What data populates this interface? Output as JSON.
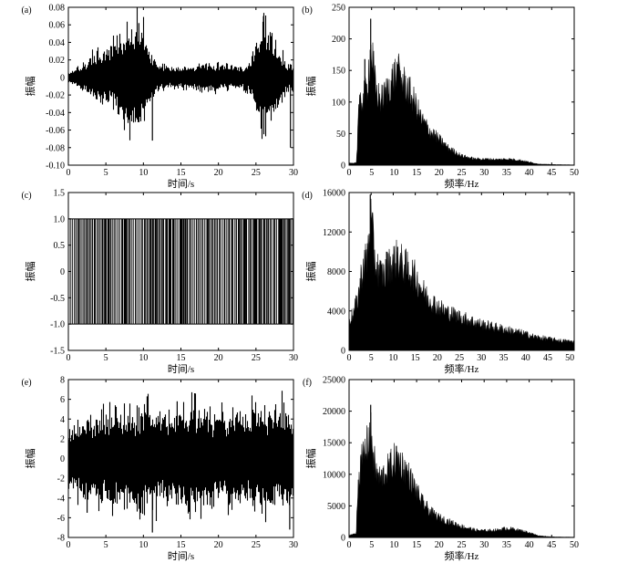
{
  "chart_data": [
    {
      "panel": "(a)",
      "type": "line",
      "signal": "noisy-waveform",
      "xlabel": "时间/s",
      "ylabel": "振幅",
      "xlim": [
        0,
        30
      ],
      "ylim": [
        -0.1,
        0.08
      ],
      "xticks": [
        0,
        5,
        10,
        15,
        20,
        25,
        30
      ],
      "yticks": [
        0.08,
        0.06,
        0.04,
        0.02,
        0,
        -0.02,
        -0.04,
        -0.06,
        -0.08,
        -0.1
      ],
      "yticklabels": [
        "0.08",
        "0.06",
        "0.04",
        "0.02",
        "0",
        "-0.02",
        "-0.04",
        "-0.06",
        "-0.08",
        "-0.10"
      ],
      "envelope_x": [
        0,
        2,
        4,
        6,
        8,
        9,
        10,
        11,
        12,
        14,
        16,
        18,
        20,
        22,
        24,
        25,
        25.5,
        26,
        27,
        28,
        29,
        30
      ],
      "envelope_amp": [
        0.004,
        0.012,
        0.022,
        0.028,
        0.045,
        0.05,
        0.04,
        0.02,
        0.012,
        0.009,
        0.01,
        0.013,
        0.012,
        0.01,
        0.012,
        0.03,
        0.045,
        0.055,
        0.045,
        0.025,
        0.015,
        0.01
      ],
      "spikes": [
        {
          "x": 11.2,
          "y": -0.072
        },
        {
          "x": 26.0,
          "y": 0.07
        },
        {
          "x": 29.6,
          "y": -0.08
        },
        {
          "x": 9.4,
          "y": 0.062
        }
      ]
    },
    {
      "panel": "(b)",
      "type": "bar",
      "signal": "spectrum",
      "xlabel": "频率/Hz",
      "ylabel": "振幅",
      "xlim": [
        0,
        50
      ],
      "ylim": [
        0,
        250
      ],
      "xticks": [
        0,
        5,
        10,
        15,
        20,
        25,
        30,
        35,
        40,
        45,
        50
      ],
      "yticks": [
        0,
        50,
        100,
        150,
        200,
        250
      ],
      "yticklabels": [
        "0",
        "50",
        "100",
        "150",
        "200",
        "250"
      ],
      "envelope_x": [
        0,
        1.6,
        1.8,
        2,
        3,
        4,
        4.5,
        5,
        5.5,
        6,
        7,
        8,
        9,
        10,
        11,
        12,
        13,
        14,
        15,
        16,
        18,
        20,
        22,
        25,
        28,
        30,
        33,
        35,
        38,
        40,
        42,
        45,
        50
      ],
      "envelope_y": [
        3,
        4,
        25,
        85,
        110,
        125,
        170,
        185,
        150,
        120,
        105,
        115,
        130,
        145,
        148,
        135,
        125,
        110,
        95,
        75,
        55,
        42,
        28,
        15,
        10,
        10,
        9,
        10,
        8,
        5,
        2,
        1,
        0.5
      ],
      "spikes": [
        {
          "x": 4.8,
          "y": 232
        },
        {
          "x": 10.8,
          "y": 160
        },
        {
          "x": 3.5,
          "y": 168
        }
      ]
    },
    {
      "panel": "(c)",
      "type": "line",
      "signal": "binary-switching",
      "xlabel": "时间/s",
      "ylabel": "振幅",
      "xlim": [
        0,
        30
      ],
      "ylim": [
        -1.5,
        1.5
      ],
      "xticks": [
        0,
        5,
        10,
        15,
        20,
        25,
        30
      ],
      "yticks": [
        1.5,
        1.0,
        0.5,
        0,
        -0.5,
        -1.0,
        -1.5
      ],
      "yticklabels": [
        "1.5",
        "1.0",
        "0.5",
        "0",
        "-0.5",
        "-1.0",
        "-1.5"
      ],
      "levels": [
        -1,
        1
      ]
    },
    {
      "panel": "(d)",
      "type": "bar",
      "signal": "spectrum",
      "xlabel": "频率/Hz",
      "ylabel": "振幅",
      "xlim": [
        0,
        51
      ],
      "ylim": [
        0,
        16000
      ],
      "xticks": [
        0,
        5,
        10,
        15,
        20,
        25,
        30,
        35,
        40,
        45,
        50
      ],
      "yticks": [
        0,
        4000,
        8000,
        12000,
        16000
      ],
      "yticklabels": [
        "0",
        "4000",
        "8000",
        "12000",
        "16000"
      ],
      "envelope_x": [
        0,
        1,
        2,
        3,
        4,
        4.5,
        5,
        5.5,
        6,
        7,
        8,
        9,
        10,
        11,
        12,
        13,
        14,
        15,
        16,
        17,
        18,
        20,
        22,
        25,
        28,
        30,
        33,
        35,
        38,
        40,
        42,
        45,
        48,
        51
      ],
      "envelope_y": [
        3200,
        3800,
        5500,
        8500,
        9500,
        11500,
        13500,
        11000,
        9000,
        8000,
        7800,
        8800,
        9200,
        9500,
        9000,
        8600,
        8200,
        7600,
        6800,
        6000,
        5400,
        4600,
        4000,
        3500,
        3000,
        2700,
        2400,
        2200,
        1900,
        1700,
        1400,
        1200,
        1000,
        900
      ],
      "spikes": [
        {
          "x": 4.8,
          "y": 15800
        },
        {
          "x": 11,
          "y": 10500
        },
        {
          "x": 8.5,
          "y": 10000
        }
      ]
    },
    {
      "panel": "(e)",
      "type": "line",
      "signal": "noisy-waveform",
      "xlabel": "时间/s",
      "ylabel": "振幅",
      "xlim": [
        0,
        30
      ],
      "ylim": [
        -8,
        8
      ],
      "xticks": [
        0,
        5,
        10,
        15,
        20,
        25,
        30
      ],
      "yticks": [
        8,
        6,
        4,
        2,
        0,
        -2,
        -4,
        -6,
        -8
      ],
      "yticklabels": [
        "8",
        "6",
        "4",
        "2",
        "0",
        "-2",
        "-4",
        "-6",
        "-8"
      ],
      "envelope_x": [
        0,
        2,
        4,
        6,
        8,
        10,
        12,
        14,
        16,
        18,
        20,
        22,
        24,
        26,
        28,
        30
      ],
      "envelope_amp": [
        2.5,
        3.2,
        3.5,
        3.8,
        4,
        4.2,
        3.5,
        3.6,
        4,
        4,
        3.5,
        3.8,
        3.6,
        4,
        3.8,
        3.5
      ],
      "spikes": [
        {
          "x": 11.2,
          "y": -7.5
        },
        {
          "x": 10.5,
          "y": 6.3
        },
        {
          "x": 29.5,
          "y": -7.2
        },
        {
          "x": 14.5,
          "y": 5.8
        },
        {
          "x": 2.5,
          "y": -5.5
        }
      ]
    },
    {
      "panel": "(f)",
      "type": "bar",
      "signal": "spectrum",
      "xlabel": "频率/Hz",
      "ylabel": "振幅",
      "xlim": [
        0,
        50
      ],
      "ylim": [
        0,
        25000
      ],
      "xticks": [
        0,
        5,
        10,
        15,
        20,
        25,
        30,
        35,
        40,
        45,
        50
      ],
      "yticks": [
        0,
        5000,
        10000,
        15000,
        20000,
        25000
      ],
      "yticklabels": [
        "0",
        "5000",
        "10000",
        "15000",
        "20000",
        "25000"
      ],
      "envelope_x": [
        0,
        1.6,
        1.8,
        2,
        3,
        4,
        4.5,
        5,
        5.5,
        6,
        7,
        8,
        9,
        10,
        11,
        12,
        13,
        14,
        15,
        16,
        18,
        20,
        22,
        25,
        28,
        30,
        33,
        35,
        37,
        40,
        42,
        45,
        50
      ],
      "envelope_y": [
        400,
        600,
        6000,
        9000,
        13000,
        15000,
        17000,
        16500,
        13000,
        10500,
        9500,
        10500,
        11500,
        12500,
        12800,
        11500,
        10500,
        9000,
        7500,
        6000,
        4200,
        3200,
        2600,
        1800,
        1200,
        1100,
        1200,
        1500,
        1300,
        800,
        300,
        100,
        50
      ],
      "spikes": [
        {
          "x": 4.8,
          "y": 21000
        },
        {
          "x": 10.5,
          "y": 14500
        }
      ]
    }
  ]
}
